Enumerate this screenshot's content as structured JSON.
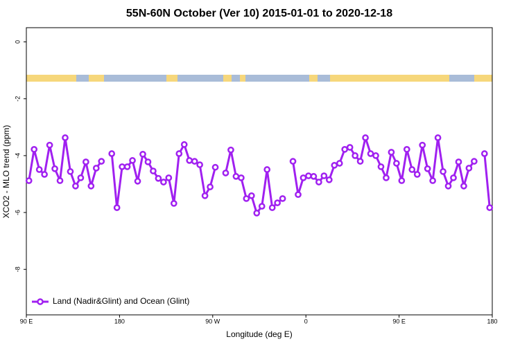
{
  "chart_data": {
    "type": "line",
    "title": "55N-60N October (Ver 10)   2015-01-01 to 2020-12-18",
    "x_label": "Longitude (deg E)",
    "y_label": "XCO2 - MLO trend (ppm)",
    "xlim": [
      90,
      540
    ],
    "ylim": [
      -9.6,
      0.5
    ],
    "xticks": [
      {
        "value": 90,
        "label": "90 E"
      },
      180,
      {
        "value": 270,
        "label": "90 W"
      },
      {
        "value": 360,
        "label": "0"
      },
      {
        "value": 450,
        "label": "90 E"
      },
      {
        "value": 540,
        "label": "180"
      }
    ],
    "yticks": [
      0,
      -2,
      -4,
      -6,
      -8
    ],
    "legend_position": "bottom-left",
    "series": [
      {
        "name": "Land (Nadir&Glint) and Ocean (Glint)",
        "color": "#a020f0",
        "x": [
          92.5,
          97.5,
          102.5,
          107.5,
          112.5,
          117.5,
          122.5,
          127.5,
          132.5,
          137.5,
          142.5,
          147.5,
          152.5,
          157.5,
          162.5,
          167.5,
          172.5,
          177.5,
          182.5,
          187.5,
          192.5,
          197.5,
          202.5,
          207.5,
          212.5,
          217.5,
          222.5,
          227.5,
          232.5,
          237.5,
          242.5,
          247.5,
          252.5,
          257.5,
          262.5,
          267.5,
          272.5,
          277.5,
          282.5,
          287.5,
          292.5,
          297.5,
          302.5,
          307.5,
          312.5,
          317.5,
          322.5,
          327.5,
          332.5,
          337.5,
          342.5,
          347.5,
          352.5,
          357.5,
          362.5,
          367.5,
          372.5,
          377.5,
          382.5,
          387.5,
          392.5,
          397.5,
          402.5,
          407.5,
          412.5,
          417.5,
          422.5,
          427.5,
          432.5,
          437.5,
          442.5,
          447.5,
          452.5,
          457.5,
          462.5,
          467.5,
          472.5,
          477.5,
          482.5,
          487.5,
          492.5,
          497.5,
          502.5,
          507.5,
          512.5,
          517.5,
          522.5,
          527.5,
          532.5,
          537.5
        ],
        "values": [
          -4.88,
          -3.78,
          -4.49,
          -4.66,
          -3.63,
          -4.46,
          -4.88,
          -3.37,
          -4.56,
          -5.07,
          -4.78,
          -4.22,
          -5.07,
          -4.44,
          -4.2,
          null,
          -3.93,
          -5.83,
          -4.39,
          -4.39,
          -4.17,
          -4.9,
          -3.95,
          -4.22,
          -4.54,
          -4.8,
          -4.93,
          -4.78,
          -5.68,
          -3.93,
          -3.61,
          -4.17,
          -4.2,
          -4.32,
          -5.41,
          -5.1,
          -4.41,
          null,
          -4.61,
          -3.8,
          -4.73,
          -4.78,
          -5.51,
          -5.41,
          -6.02,
          -5.78,
          -4.49,
          -5.83,
          -5.66,
          -5.51,
          null,
          -4.2,
          -5.37,
          -4.78,
          -4.71,
          -4.73,
          -4.93,
          -4.71,
          -4.85,
          -4.34,
          -4.27,
          -3.78,
          -3.71,
          -4.0,
          -4.2,
          -3.37,
          -3.93,
          -4.0,
          -4.39,
          -4.78,
          -3.88,
          -4.27,
          -4.88,
          -3.78,
          -4.49,
          -4.66,
          -3.63,
          -4.46,
          -4.88,
          -3.37,
          -4.56,
          -5.07,
          -4.78,
          -4.22,
          -5.07,
          -4.44,
          -4.2,
          null,
          -3.93,
          -5.83
        ]
      }
    ]
  }
}
